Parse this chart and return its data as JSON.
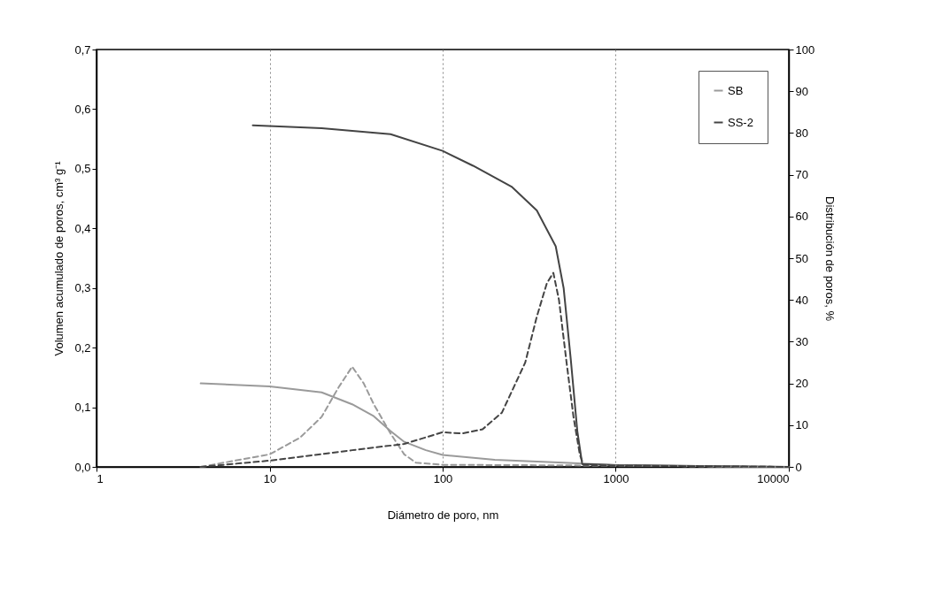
{
  "chart_data": {
    "type": "line",
    "xlabel": "Diámetro de poro, nm",
    "ylabel": "Volumen acumulado de poros, cm³ g⁻¹",
    "y2label": "Distribución de poros, %",
    "log": "x",
    "grid": "x",
    "legend": "top right",
    "marker": "none",
    "xlim": [
      1,
      10000
    ],
    "xticks": [
      1,
      10,
      100,
      1000,
      10000
    ],
    "ylim": [
      0,
      0.7
    ],
    "yticks": [
      {
        "value": 0,
        "label": "0,0"
      },
      {
        "value": 0.1,
        "label": "0,1"
      },
      {
        "value": 0.2,
        "label": "0,2"
      },
      {
        "value": 0.3,
        "label": "0,3"
      },
      {
        "value": 0.4,
        "label": "0,4"
      },
      {
        "value": 0.5,
        "label": "0,5"
      },
      {
        "value": 0.6,
        "label": "0,6"
      },
      {
        "value": 0.7,
        "label": "0,7"
      }
    ],
    "y2lim": [
      0,
      100
    ],
    "y2ticks": [
      0,
      10,
      20,
      30,
      40,
      50,
      60,
      70,
      80,
      90,
      100
    ],
    "series": [
      {
        "name": "SB",
        "color": "#9a9a9a",
        "line_style": "solid",
        "x": [
          4,
          10,
          20,
          30,
          40,
          50,
          60,
          80,
          100,
          200,
          500,
          1000,
          10000
        ],
        "values": [
          0.14,
          0.135,
          0.125,
          0.105,
          0.085,
          0.06,
          0.042,
          0.028,
          0.02,
          0.012,
          0.007,
          0.003,
          0.0
        ]
      },
      {
        "name": "SS-2",
        "color": "#444444",
        "line_style": "solid",
        "x": [
          8,
          20,
          50,
          100,
          150,
          250,
          350,
          450,
          500,
          550,
          600,
          640,
          1000,
          10000
        ],
        "values": [
          0.573,
          0.568,
          0.558,
          0.53,
          0.505,
          0.47,
          0.43,
          0.37,
          0.3,
          0.18,
          0.06,
          0.005,
          0.003,
          0.0
        ]
      },
      {
        "color": "#9a9a9a",
        "line_style": "dashed",
        "axis": "y2",
        "x": [
          4,
          10,
          15,
          20,
          25,
          30,
          35,
          40,
          50,
          60,
          70,
          100,
          1000,
          10000
        ],
        "values": [
          0,
          3,
          7,
          12,
          19,
          24,
          20,
          15,
          8,
          3,
          1,
          0.5,
          0.3,
          0
        ]
      },
      {
        "color": "#444444",
        "line_style": "dashed",
        "axis": "y2",
        "x": [
          4,
          10,
          30,
          60,
          100,
          130,
          170,
          220,
          300,
          350,
          400,
          436,
          470,
          520,
          570,
          620,
          650,
          1000,
          10000
        ],
        "values": [
          0,
          1.5,
          4,
          5.5,
          8.3,
          8,
          9,
          13,
          25,
          36,
          44,
          46.5,
          40,
          25,
          12,
          3,
          0.5,
          0.3,
          0
        ]
      }
    ]
  }
}
